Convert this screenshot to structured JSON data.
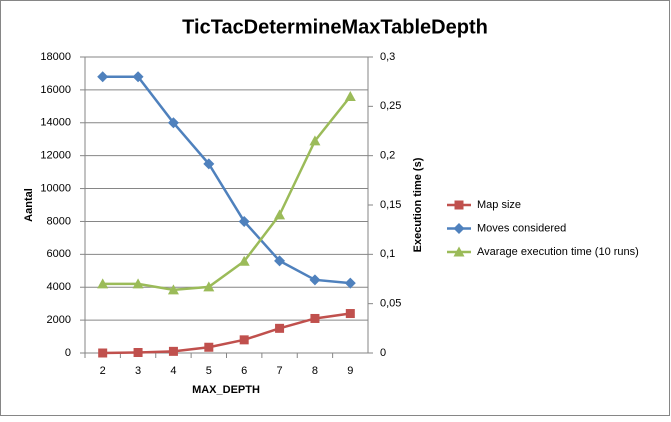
{
  "chart_data": {
    "type": "line",
    "title": "TicTacDetermineMaxTableDepth",
    "x_label": "MAX_DEPTH",
    "y_label": "Aantal",
    "y2_label": "Execution time (s)",
    "categories": [
      "2",
      "3",
      "4",
      "5",
      "6",
      "7",
      "8",
      "9"
    ],
    "series": [
      {
        "name": "Map size",
        "color": "#c0504d",
        "marker": "square",
        "values": [
          0,
          30,
          100,
          350,
          800,
          1500,
          2100,
          2400
        ]
      },
      {
        "name": "Moves considered",
        "color": "#4f81bd",
        "marker": "diamond",
        "values": [
          16800,
          16800,
          14000,
          11500,
          8000,
          5600,
          4450,
          4250
        ]
      },
      {
        "name": "Avarage execution time (10 runs)",
        "color": "#9bbb59",
        "marker": "triangle",
        "axis": "y2",
        "values": [
          0.07,
          0.07,
          0.064,
          0.067,
          0.093,
          0.14,
          0.215,
          0.26
        ]
      }
    ],
    "ylim": [
      0,
      18000
    ],
    "yticks": [
      0,
      2000,
      4000,
      6000,
      8000,
      10000,
      12000,
      14000,
      16000,
      18000
    ],
    "y2lim": [
      0,
      0.3
    ],
    "y2ticks": [
      0,
      {
        "value": 0.05,
        "label": "0,05"
      },
      {
        "value": 0.1,
        "label": "0,1"
      },
      {
        "value": 0.15,
        "label": "0,15"
      },
      {
        "value": 0.2,
        "label": "0,2"
      },
      {
        "value": 0.25,
        "label": "0,25"
      },
      {
        "value": 0.3,
        "label": "0,3"
      }
    ],
    "grid": true,
    "legend": "right"
  }
}
